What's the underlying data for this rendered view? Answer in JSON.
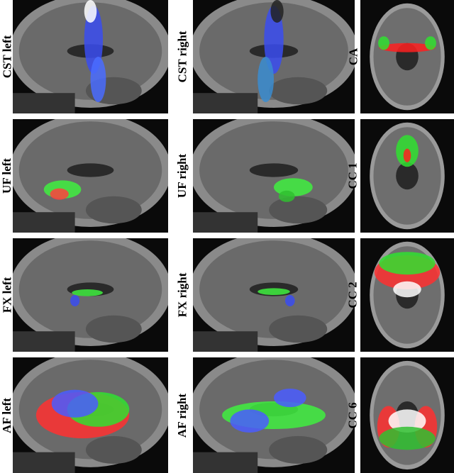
{
  "panels": [
    {
      "label": "CST left"
    },
    {
      "label": "CST right"
    },
    {
      "label": "CA"
    },
    {
      "label": "UF left"
    },
    {
      "label": "UF right"
    },
    {
      "label": "CC 1"
    },
    {
      "label": "FX left"
    },
    {
      "label": "FX right"
    },
    {
      "label": "CC 2"
    },
    {
      "label": "AF left"
    },
    {
      "label": "AF right"
    },
    {
      "label": "CC 6"
    }
  ]
}
